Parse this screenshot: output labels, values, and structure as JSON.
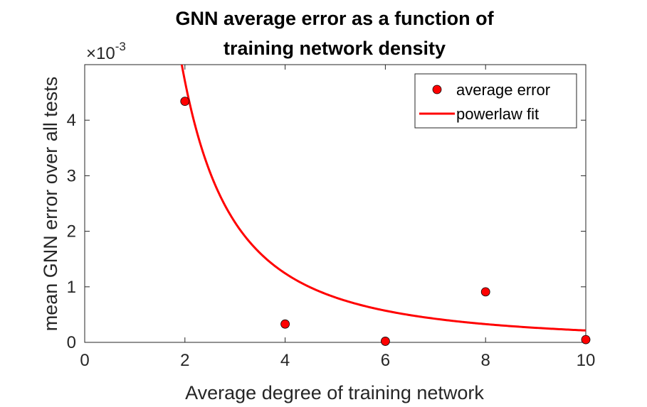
{
  "chart_data": {
    "type": "scatter",
    "title_lines": [
      "GNN average error as a function of",
      "training network density"
    ],
    "xlabel": "Average degree of training network",
    "ylabel": "mean GNN error over all tests",
    "y_exponent_base": "×10",
    "y_exponent_power": "-3",
    "xlim": [
      0,
      10
    ],
    "ylim": [
      0,
      0.005
    ],
    "xticks": [
      0,
      2,
      4,
      6,
      8,
      10
    ],
    "xtick_labels": [
      "0",
      "2",
      "4",
      "6",
      "8",
      "10"
    ],
    "yticks": [
      0,
      0.001,
      0.002,
      0.003,
      0.004
    ],
    "ytick_labels": [
      "0",
      "1",
      "2",
      "3",
      "4"
    ],
    "grid": false,
    "legend_position": "top-right",
    "series": [
      {
        "name": "average error",
        "kind": "markers",
        "color": "#ff0000",
        "x": [
          2,
          4,
          6,
          8,
          10
        ],
        "y": [
          0.00434,
          0.00033,
          2e-05,
          0.00091,
          5e-05
        ]
      },
      {
        "name": "powerlaw fit",
        "kind": "line",
        "color": "#ff0000",
        "model": "a*x^b",
        "a": 0.0178,
        "b": -1.92,
        "x_start": 1.78,
        "x_end": 10
      }
    ]
  }
}
